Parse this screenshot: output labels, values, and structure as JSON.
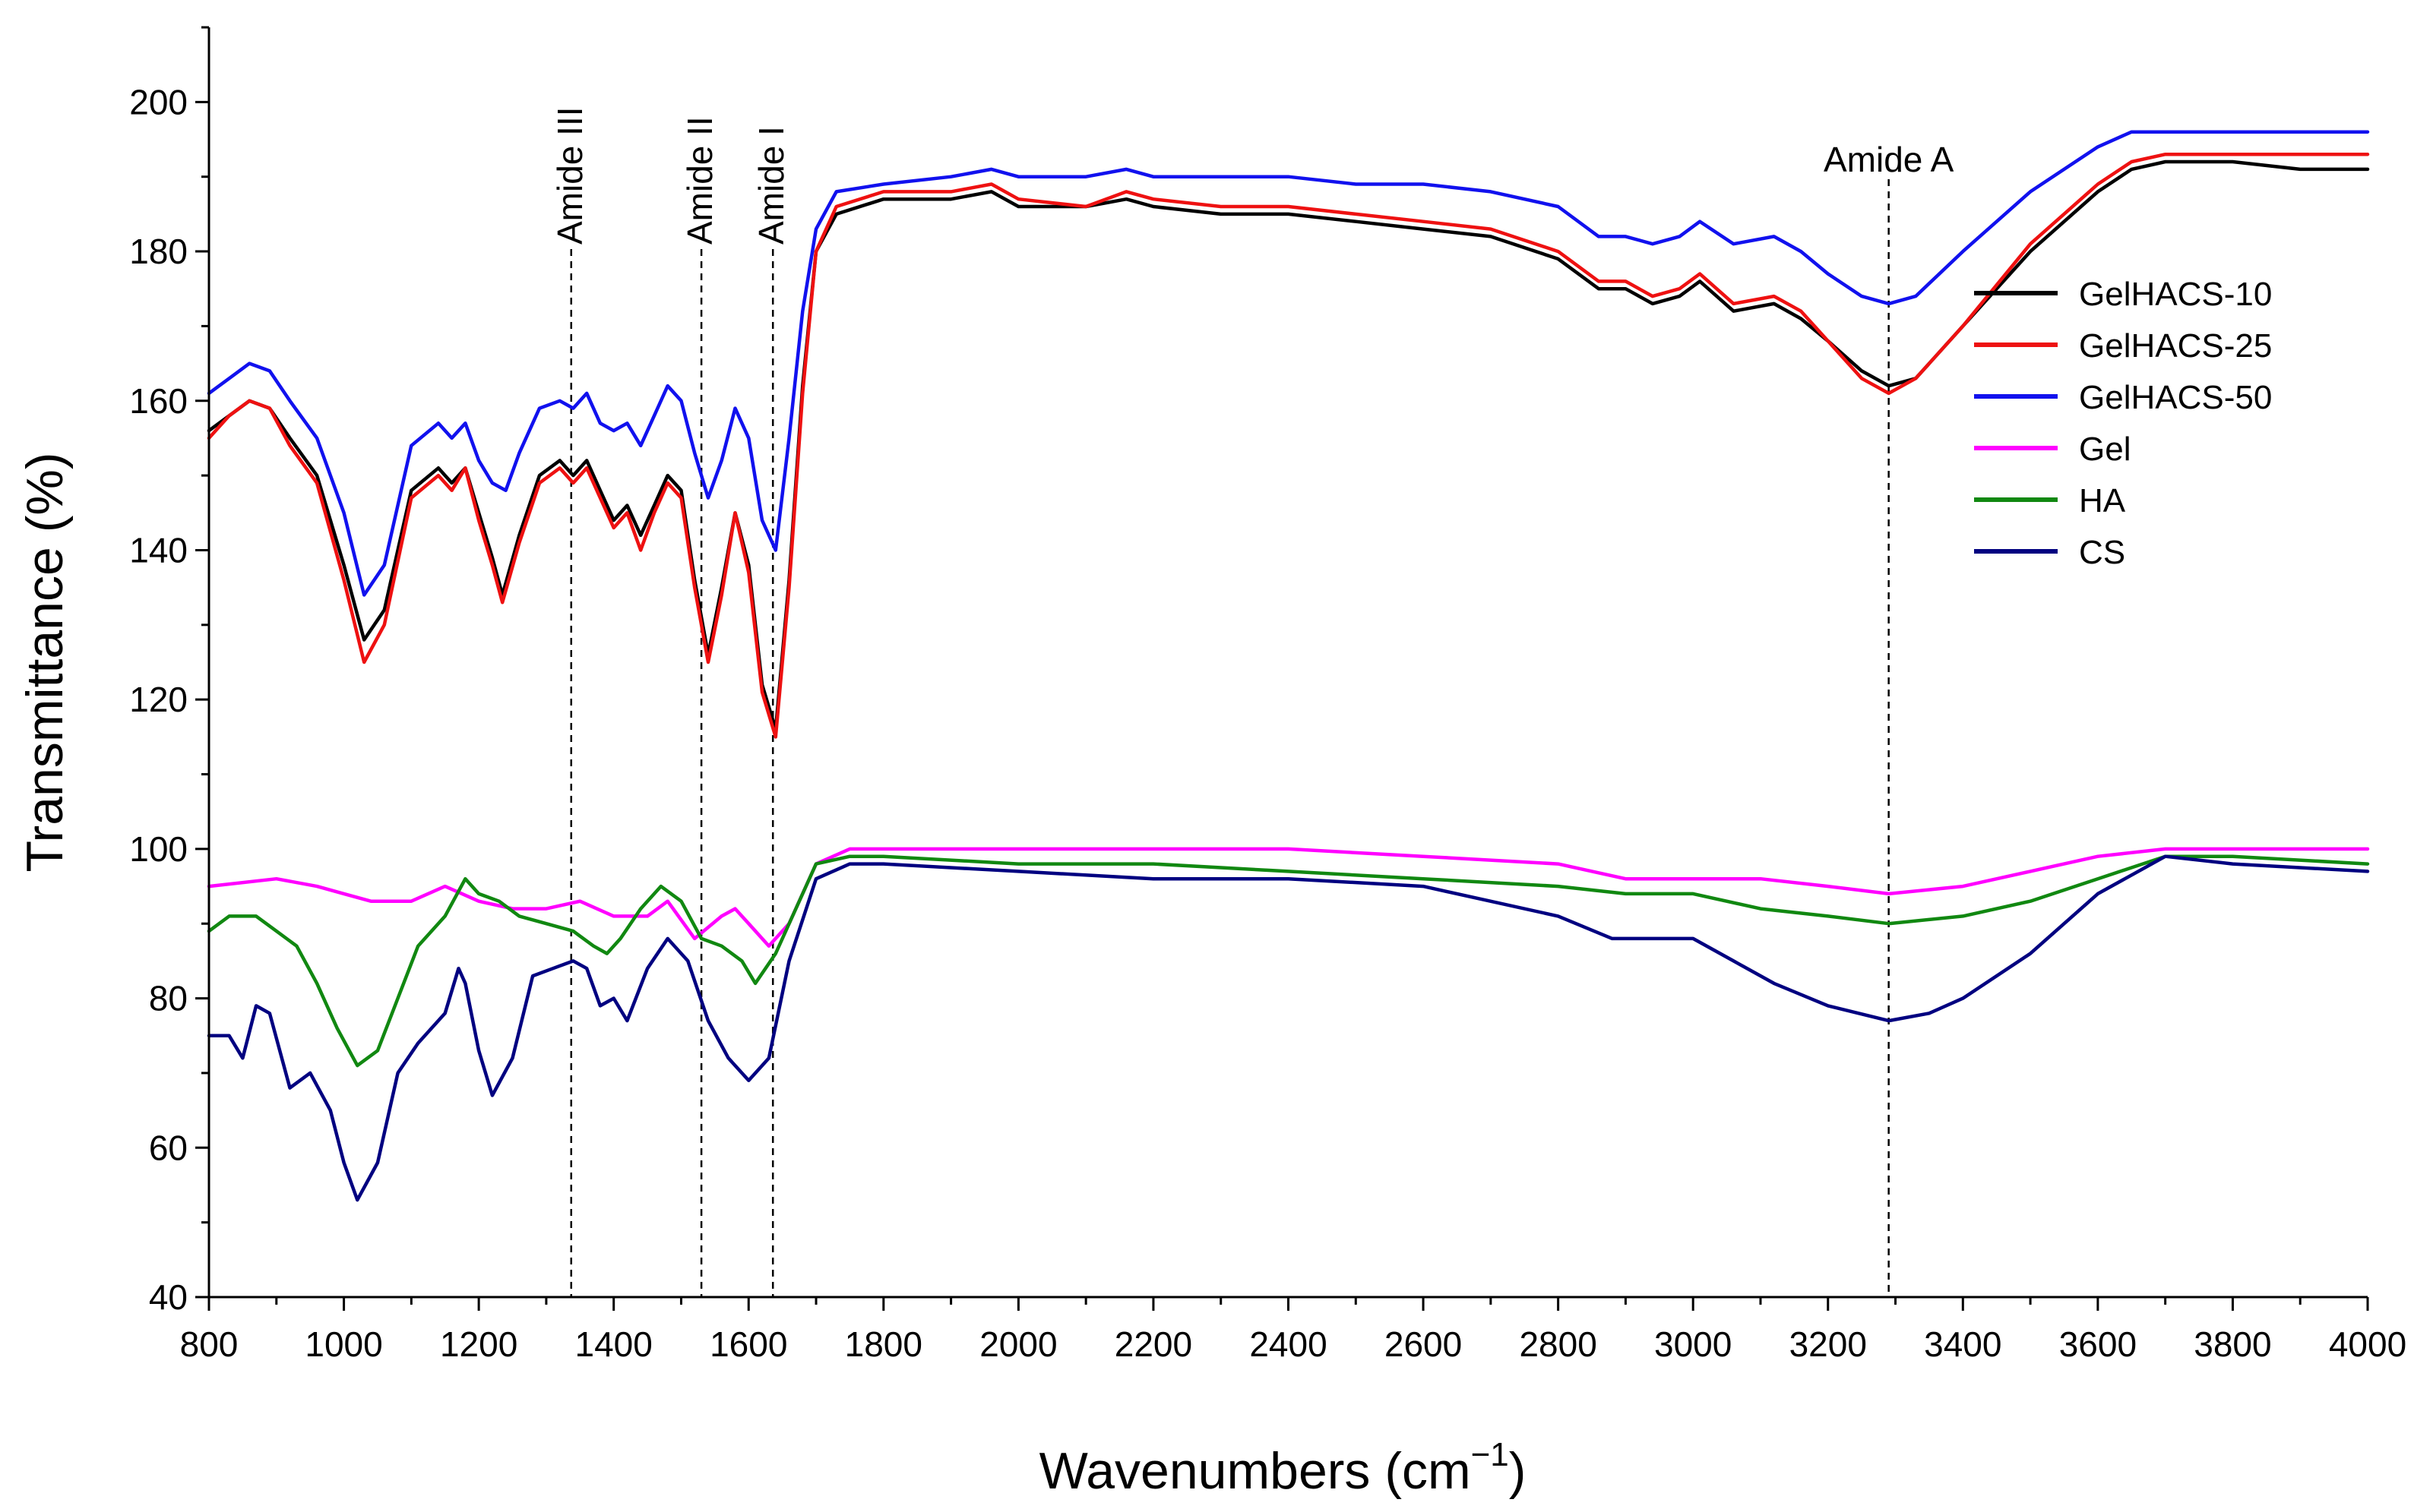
{
  "chart_data": {
    "type": "line",
    "xlabel": "Wavenumbers (cm",
    "xlabel_superscript": "−1",
    "xlabel_close": ")",
    "ylabel": "Transmittance (%)",
    "xlim": [
      800,
      4000
    ],
    "ylim": [
      40,
      210
    ],
    "x_ticks": [
      800,
      1000,
      1200,
      1400,
      1600,
      1800,
      2000,
      2200,
      2400,
      2600,
      2800,
      3000,
      3200,
      3400,
      3600,
      3800,
      4000
    ],
    "y_ticks": [
      40,
      60,
      80,
      100,
      120,
      140,
      160,
      180,
      200
    ],
    "legend_position": "right",
    "annotations": [
      {
        "label": "Amide III",
        "x": 1337
      },
      {
        "label": "Amide II",
        "x": 1530
      },
      {
        "label": "Amide I",
        "x": 1636
      },
      {
        "label": "Amide A",
        "x": 3290
      }
    ],
    "series": [
      {
        "name": "GelHACS-10",
        "color": "#000000",
        "x": [
          800,
          830,
          860,
          890,
          920,
          960,
          1000,
          1030,
          1060,
          1100,
          1140,
          1160,
          1180,
          1200,
          1220,
          1235,
          1260,
          1290,
          1320,
          1340,
          1360,
          1380,
          1400,
          1420,
          1440,
          1460,
          1480,
          1500,
          1520,
          1540,
          1560,
          1580,
          1600,
          1620,
          1640,
          1660,
          1680,
          1700,
          1730,
          1800,
          1900,
          1960,
          2000,
          2100,
          2160,
          2200,
          2300,
          2400,
          2500,
          2600,
          2700,
          2800,
          2860,
          2900,
          2940,
          2980,
          3010,
          3060,
          3120,
          3160,
          3200,
          3250,
          3290,
          3330,
          3400,
          3500,
          3600,
          3650,
          3700,
          3800,
          3900,
          4000
        ],
        "values": [
          156,
          158,
          160,
          159,
          155,
          150,
          138,
          128,
          132,
          148,
          151,
          149,
          151,
          145,
          139,
          134,
          142,
          150,
          152,
          150,
          152,
          148,
          144,
          146,
          142,
          146,
          150,
          148,
          136,
          126,
          135,
          145,
          138,
          122,
          116,
          136,
          162,
          180,
          185,
          187,
          187,
          188,
          186,
          186,
          187,
          186,
          185,
          185,
          184,
          183,
          182,
          179,
          175,
          175,
          173,
          174,
          176,
          172,
          173,
          171,
          168,
          164,
          162,
          163,
          170,
          180,
          188,
          191,
          192,
          192,
          191,
          191
        ]
      },
      {
        "name": "GelHACS-25",
        "color": "#ee1111",
        "x": [
          800,
          830,
          860,
          890,
          920,
          960,
          1000,
          1030,
          1060,
          1100,
          1140,
          1160,
          1180,
          1200,
          1220,
          1235,
          1260,
          1290,
          1320,
          1340,
          1360,
          1380,
          1400,
          1420,
          1440,
          1460,
          1480,
          1500,
          1520,
          1540,
          1560,
          1580,
          1600,
          1620,
          1640,
          1660,
          1680,
          1700,
          1730,
          1800,
          1900,
          1960,
          2000,
          2100,
          2160,
          2200,
          2300,
          2400,
          2500,
          2600,
          2700,
          2800,
          2860,
          2900,
          2940,
          2980,
          3010,
          3060,
          3120,
          3160,
          3200,
          3250,
          3290,
          3330,
          3400,
          3500,
          3600,
          3650,
          3700,
          3800,
          3900,
          4000
        ],
        "values": [
          155,
          158,
          160,
          159,
          154,
          149,
          136,
          125,
          130,
          147,
          150,
          148,
          151,
          144,
          138,
          133,
          141,
          149,
          151,
          149,
          151,
          147,
          143,
          145,
          140,
          145,
          149,
          147,
          135,
          125,
          134,
          145,
          137,
          121,
          115,
          135,
          161,
          180,
          186,
          188,
          188,
          189,
          187,
          186,
          188,
          187,
          186,
          186,
          185,
          184,
          183,
          180,
          176,
          176,
          174,
          175,
          177,
          173,
          174,
          172,
          168,
          163,
          161,
          163,
          170,
          181,
          189,
          192,
          193,
          193,
          193,
          193
        ]
      },
      {
        "name": "GelHACS-50",
        "color": "#1111ee",
        "x": [
          800,
          830,
          860,
          890,
          920,
          960,
          1000,
          1030,
          1060,
          1100,
          1140,
          1160,
          1180,
          1200,
          1220,
          1240,
          1260,
          1290,
          1320,
          1340,
          1360,
          1380,
          1400,
          1420,
          1440,
          1460,
          1480,
          1500,
          1520,
          1540,
          1560,
          1580,
          1600,
          1620,
          1640,
          1660,
          1680,
          1700,
          1730,
          1800,
          1900,
          1960,
          2000,
          2100,
          2160,
          2200,
          2300,
          2400,
          2500,
          2600,
          2700,
          2800,
          2860,
          2900,
          2940,
          2980,
          3010,
          3060,
          3120,
          3160,
          3200,
          3250,
          3290,
          3330,
          3400,
          3500,
          3600,
          3650,
          3700,
          3800,
          3900,
          4000
        ],
        "values": [
          161,
          163,
          165,
          164,
          160,
          155,
          145,
          134,
          138,
          154,
          157,
          155,
          157,
          152,
          149,
          148,
          153,
          159,
          160,
          159,
          161,
          157,
          156,
          157,
          154,
          158,
          162,
          160,
          153,
          147,
          152,
          159,
          155,
          144,
          140,
          155,
          172,
          183,
          188,
          189,
          190,
          191,
          190,
          190,
          191,
          190,
          190,
          190,
          189,
          189,
          188,
          186,
          182,
          182,
          181,
          182,
          184,
          181,
          182,
          180,
          177,
          174,
          173,
          174,
          180,
          188,
          194,
          196,
          196,
          196,
          196,
          196
        ]
      },
      {
        "name": "Gel",
        "color": "#ff00ff",
        "x": [
          800,
          900,
          960,
          1000,
          1040,
          1100,
          1150,
          1200,
          1250,
          1300,
          1350,
          1400,
          1450,
          1480,
          1520,
          1560,
          1580,
          1600,
          1630,
          1660,
          1700,
          1750,
          1800,
          2000,
          2200,
          2400,
          2600,
          2800,
          2900,
          3000,
          3100,
          3200,
          3290,
          3400,
          3500,
          3600,
          3700,
          3800,
          4000
        ],
        "values": [
          95,
          96,
          95,
          94,
          93,
          93,
          95,
          93,
          92,
          92,
          93,
          91,
          91,
          93,
          88,
          91,
          92,
          90,
          87,
          90,
          98,
          100,
          100,
          100,
          100,
          100,
          99,
          98,
          96,
          96,
          96,
          95,
          94,
          95,
          97,
          99,
          100,
          100,
          100
        ]
      },
      {
        "name": "HA",
        "color": "#118811",
        "x": [
          800,
          830,
          870,
          900,
          930,
          960,
          990,
          1020,
          1050,
          1080,
          1110,
          1150,
          1180,
          1200,
          1230,
          1260,
          1300,
          1340,
          1370,
          1390,
          1410,
          1440,
          1470,
          1500,
          1530,
          1560,
          1590,
          1610,
          1640,
          1680,
          1700,
          1750,
          1800,
          2000,
          2200,
          2400,
          2600,
          2800,
          2900,
          3000,
          3100,
          3200,
          3290,
          3400,
          3500,
          3600,
          3700,
          3800,
          4000
        ],
        "values": [
          89,
          91,
          91,
          89,
          87,
          82,
          76,
          71,
          73,
          80,
          87,
          91,
          96,
          94,
          93,
          91,
          90,
          89,
          87,
          86,
          88,
          92,
          95,
          93,
          88,
          87,
          85,
          82,
          86,
          94,
          98,
          99,
          99,
          98,
          98,
          97,
          96,
          95,
          94,
          94,
          92,
          91,
          90,
          91,
          93,
          96,
          99,
          99,
          98
        ]
      },
      {
        "name": "CS",
        "color": "#000080",
        "x": [
          800,
          830,
          850,
          870,
          890,
          920,
          950,
          980,
          1000,
          1020,
          1050,
          1080,
          1110,
          1150,
          1170,
          1180,
          1200,
          1220,
          1250,
          1280,
          1310,
          1340,
          1360,
          1380,
          1400,
          1420,
          1450,
          1480,
          1510,
          1540,
          1570,
          1600,
          1630,
          1660,
          1700,
          1750,
          1800,
          2000,
          2200,
          2400,
          2600,
          2800,
          2880,
          2940,
          3000,
          3060,
          3120,
          3200,
          3290,
          3350,
          3400,
          3500,
          3600,
          3700,
          3800,
          4000
        ],
        "values": [
          75,
          75,
          72,
          79,
          78,
          68,
          70,
          65,
          58,
          53,
          58,
          70,
          74,
          78,
          84,
          82,
          73,
          67,
          72,
          83,
          84,
          85,
          84,
          79,
          80,
          77,
          84,
          88,
          85,
          77,
          72,
          69,
          72,
          85,
          96,
          98,
          98,
          97,
          96,
          96,
          95,
          91,
          88,
          88,
          88,
          85,
          82,
          79,
          77,
          78,
          80,
          86,
          94,
          99,
          98,
          97
        ]
      }
    ]
  }
}
